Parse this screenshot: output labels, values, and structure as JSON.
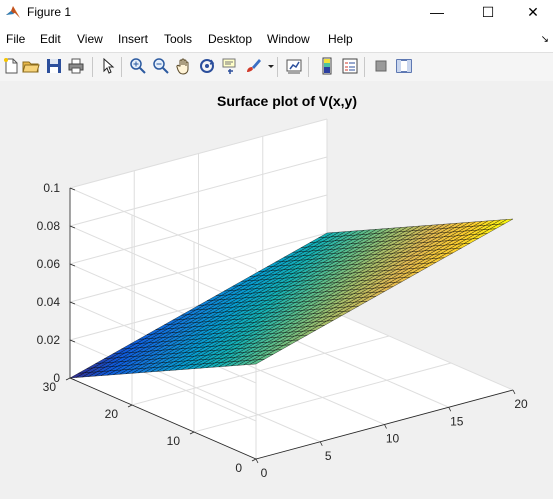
{
  "window": {
    "title": "Figure 1",
    "minimize_glyph": "—",
    "maximize_glyph": "☐",
    "close_glyph": "✕"
  },
  "menu": {
    "items": [
      "File",
      "Edit",
      "View",
      "Insert",
      "Tools",
      "Desktop",
      "Window",
      "Help"
    ],
    "overflow_glyph": "↘"
  },
  "toolbar": {
    "icons": [
      "new-figure-icon",
      "open-file-icon",
      "save-icon",
      "print-icon",
      "pointer-icon",
      "zoom-in-icon",
      "zoom-out-icon",
      "pan-hand-icon",
      "rotate-3d-icon",
      "data-cursor-icon",
      "brush-icon",
      "link-plot-icon",
      "colorbar-icon",
      "legend-icon",
      "hide-plot-tools-icon",
      "show-plot-tools-icon"
    ]
  },
  "chart_data": {
    "type": "surface",
    "title": "Surface plot of V(x,y)",
    "xlabel": "",
    "ylabel": "",
    "zlabel": "",
    "xlim": [
      0,
      20
    ],
    "ylim": [
      0,
      30
    ],
    "zlim": [
      0,
      0.1
    ],
    "x_ticks": [
      "0",
      "5",
      "10",
      "15",
      "20"
    ],
    "y_ticks": [
      "0",
      "10",
      "20",
      "30"
    ],
    "z_ticks": [
      "0",
      "0.02",
      "0.04",
      "0.06",
      "0.08",
      "0.1"
    ],
    "corners": [
      {
        "x": 0,
        "y": 30,
        "z": 0
      },
      {
        "x": 0,
        "y": 0,
        "z": 0.05
      },
      {
        "x": 20,
        "y": 0,
        "z": 0.09
      },
      {
        "x": 20,
        "y": 30,
        "z": 0.04
      }
    ],
    "colormap": "parula",
    "grid": true
  }
}
